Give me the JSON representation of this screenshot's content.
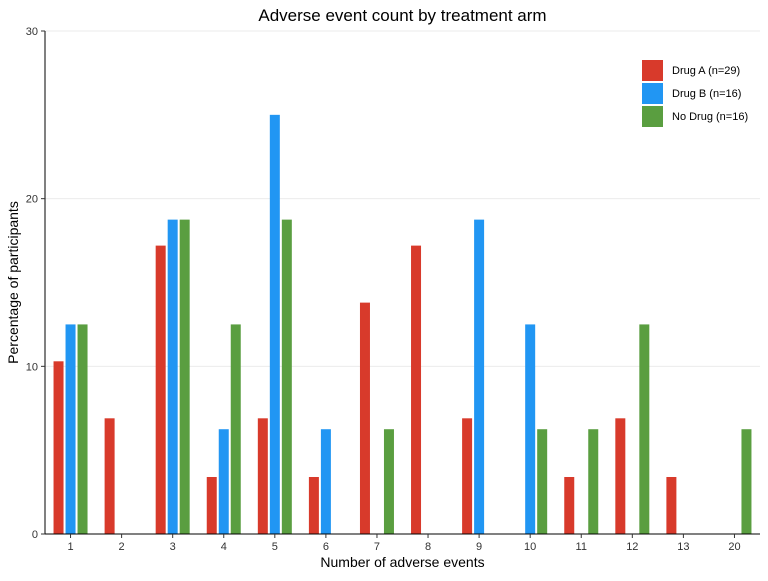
{
  "chart_data": {
    "type": "bar",
    "title": "Adverse event count by treatment arm",
    "xlabel": "Number of adverse events",
    "ylabel": "Percentage of participants",
    "categories": [
      "1",
      "2",
      "3",
      "4",
      "5",
      "6",
      "7",
      "8",
      "9",
      "10",
      "11",
      "12",
      "13",
      "20"
    ],
    "ylim": [
      0,
      30
    ],
    "yticks": [
      0,
      10,
      20,
      30
    ],
    "grid": "horizontal",
    "legend_position": "top-right",
    "series": [
      {
        "name": "Drug A (n=29)",
        "color": "#d83a2b",
        "values": [
          10.3,
          6.9,
          17.2,
          3.4,
          6.9,
          3.4,
          13.8,
          17.2,
          6.9,
          0,
          3.4,
          6.9,
          3.4,
          0
        ]
      },
      {
        "name": "Drug B (n=16)",
        "color": "#2196f3",
        "values": [
          12.5,
          0,
          18.75,
          6.25,
          25,
          6.25,
          0,
          0,
          18.75,
          12.5,
          0,
          0,
          0,
          0
        ]
      },
      {
        "name": "No Drug (n=16)",
        "color": "#5a9e40",
        "values": [
          12.5,
          0,
          18.75,
          12.5,
          18.75,
          0,
          6.25,
          0,
          0,
          6.25,
          6.25,
          12.5,
          0,
          6.25
        ]
      }
    ]
  }
}
